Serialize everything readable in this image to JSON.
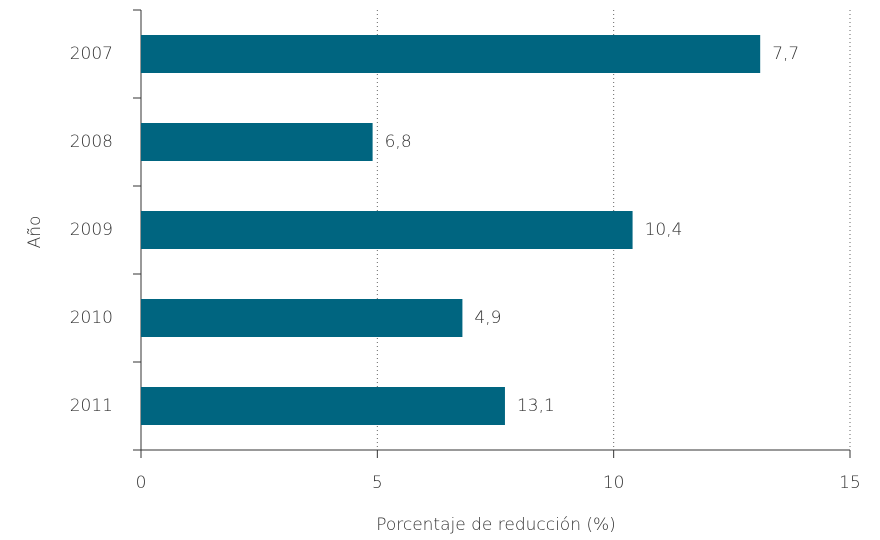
{
  "chart_data": {
    "type": "hbar",
    "x_label": "Porcentaje de reducción (%)",
    "y_label": "Año",
    "categories": [
      "2007",
      "2008",
      "2009",
      "2010",
      "2011"
    ],
    "values": [
      13.1,
      4.9,
      10.4,
      6.8,
      7.7
    ],
    "annotations": [
      "7,7",
      "6,8",
      "10,4",
      "4,9",
      "13,1"
    ],
    "color": "#006580",
    "xlim": [
      0,
      15
    ],
    "xticks": [
      0,
      5,
      10,
      15
    ],
    "grid": true
  }
}
